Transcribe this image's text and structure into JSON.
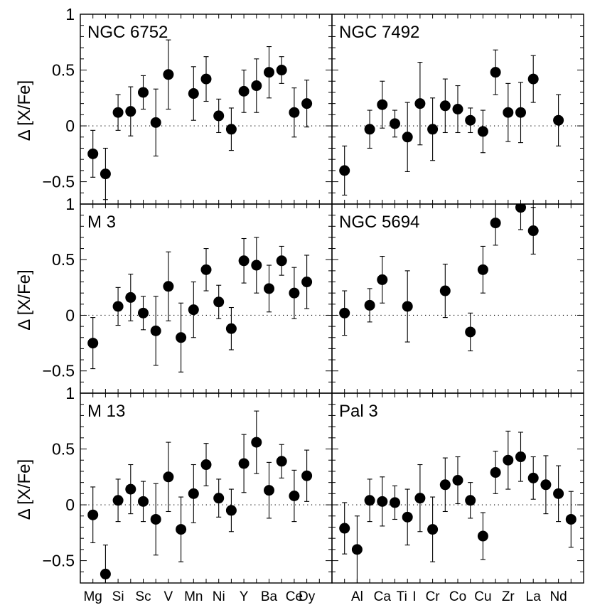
{
  "chart_data": [
    {
      "type": "scatter",
      "title": "NGC 6752",
      "ylabel": "Δ [X/Fe]",
      "ylim": [
        -0.7,
        1.0
      ],
      "yticks": [
        "1",
        "0.5",
        "0",
        "−0.5"
      ],
      "points": [
        {
          "x": 1,
          "y": -0.25,
          "err": 0.21
        },
        {
          "x": 2,
          "y": -0.43,
          "err": 0.23
        },
        {
          "x": 3,
          "y": 0.12,
          "err": 0.16
        },
        {
          "x": 4,
          "y": 0.13,
          "err": 0.22
        },
        {
          "x": 5,
          "y": 0.3,
          "err": 0.15
        },
        {
          "x": 6,
          "y": 0.03,
          "err": 0.3
        },
        {
          "x": 7,
          "y": 0.46,
          "err": 0.31
        },
        {
          "x": 9,
          "y": 0.29,
          "err": 0.24
        },
        {
          "x": 10,
          "y": 0.42,
          "err": 0.2
        },
        {
          "x": 11,
          "y": 0.09,
          "err": 0.15
        },
        {
          "x": 12,
          "y": -0.03,
          "err": 0.19
        },
        {
          "x": 13,
          "y": 0.31,
          "err": 0.19
        },
        {
          "x": 14,
          "y": 0.36,
          "err": 0.24
        },
        {
          "x": 15,
          "y": 0.48,
          "err": 0.23
        },
        {
          "x": 16,
          "y": 0.5,
          "err": 0.12
        },
        {
          "x": 17,
          "y": 0.12,
          "err": 0.22
        },
        {
          "x": 18,
          "y": 0.2,
          "err": 0.21
        }
      ]
    },
    {
      "type": "scatter",
      "title": "NGC 7492",
      "ylim": [
        -0.7,
        1.0
      ],
      "points": [
        {
          "x": 1,
          "y": -0.4,
          "err": 0.22
        },
        {
          "x": 3,
          "y": -0.03,
          "err": 0.17
        },
        {
          "x": 4,
          "y": 0.19,
          "err": 0.21
        },
        {
          "x": 5,
          "y": 0.02,
          "err": 0.12
        },
        {
          "x": 6,
          "y": -0.1,
          "err": 0.31
        },
        {
          "x": 7,
          "y": 0.2,
          "err": 0.37
        },
        {
          "x": 8,
          "y": -0.03,
          "err": 0.28
        },
        {
          "x": 9,
          "y": 0.18,
          "err": 0.24
        },
        {
          "x": 10,
          "y": 0.15,
          "err": 0.21
        },
        {
          "x": 11,
          "y": 0.05,
          "err": 0.11
        },
        {
          "x": 12,
          "y": -0.05,
          "err": 0.19
        },
        {
          "x": 13,
          "y": 0.48,
          "err": 0.2
        },
        {
          "x": 14,
          "y": 0.12,
          "err": 0.26
        },
        {
          "x": 15,
          "y": 0.12,
          "err": 0.27
        },
        {
          "x": 16,
          "y": 0.42,
          "err": 0.21
        },
        {
          "x": 18,
          "y": 0.05,
          "err": 0.23
        }
      ]
    },
    {
      "type": "scatter",
      "title": "M 3",
      "ylabel": "Δ [X/Fe]",
      "ylim": [
        -0.7,
        1.0
      ],
      "yticks": [
        "1",
        "0.5",
        "0",
        "−0.5"
      ],
      "points": [
        {
          "x": 1,
          "y": -0.25,
          "err": 0.23
        },
        {
          "x": 3,
          "y": 0.08,
          "err": 0.17
        },
        {
          "x": 4,
          "y": 0.16,
          "err": 0.21
        },
        {
          "x": 5,
          "y": 0.02,
          "err": 0.15
        },
        {
          "x": 6,
          "y": -0.14,
          "err": 0.31
        },
        {
          "x": 7,
          "y": 0.26,
          "err": 0.31
        },
        {
          "x": 8,
          "y": -0.2,
          "err": 0.31
        },
        {
          "x": 9,
          "y": 0.05,
          "err": 0.25
        },
        {
          "x": 10,
          "y": 0.41,
          "err": 0.19
        },
        {
          "x": 11,
          "y": 0.12,
          "err": 0.15
        },
        {
          "x": 12,
          "y": -0.12,
          "err": 0.19
        },
        {
          "x": 13,
          "y": 0.49,
          "err": 0.2
        },
        {
          "x": 14,
          "y": 0.45,
          "err": 0.25
        },
        {
          "x": 15,
          "y": 0.24,
          "err": 0.21
        },
        {
          "x": 16,
          "y": 0.49,
          "err": 0.13
        },
        {
          "x": 17,
          "y": 0.2,
          "err": 0.23
        },
        {
          "x": 18,
          "y": 0.3,
          "err": 0.24
        }
      ]
    },
    {
      "type": "scatter",
      "title": "NGC 5694",
      "ylim": [
        -0.7,
        1.0
      ],
      "points": [
        {
          "x": 1,
          "y": 0.02,
          "err": 0.2
        },
        {
          "x": 3,
          "y": 0.09,
          "err": 0.15
        },
        {
          "x": 4,
          "y": 0.32,
          "err": 0.21
        },
        {
          "x": 6,
          "y": 0.08,
          "err": 0.32
        },
        {
          "x": 9,
          "y": 0.22,
          "err": 0.24
        },
        {
          "x": 11,
          "y": -0.15,
          "err": 0.17
        },
        {
          "x": 12,
          "y": 0.41,
          "err": 0.21
        },
        {
          "x": 13,
          "y": 0.83,
          "err": 0.2
        },
        {
          "x": 15,
          "y": 0.97,
          "err": 0.2
        },
        {
          "x": 16,
          "y": 0.76,
          "err": 0.21
        }
      ]
    },
    {
      "type": "scatter",
      "title": "M 13",
      "ylabel": "Δ [X/Fe]",
      "ylim": [
        -0.7,
        1.0
      ],
      "yticks": [
        "1",
        "0.5",
        "0",
        "−0.5"
      ],
      "xticks": [
        "Mg",
        "Si",
        "Sc",
        "V",
        "Mn",
        "Ni",
        "Y",
        "Ba",
        "Ce",
        "Dy"
      ],
      "xtick_positions": [
        1,
        3,
        5,
        7,
        9,
        11,
        13,
        15,
        17,
        18
      ],
      "points": [
        {
          "x": 1,
          "y": -0.09,
          "err": 0.25
        },
        {
          "x": 2,
          "y": -0.62,
          "err": 0.26
        },
        {
          "x": 3,
          "y": 0.04,
          "err": 0.19
        },
        {
          "x": 4,
          "y": 0.14,
          "err": 0.22
        },
        {
          "x": 5,
          "y": 0.03,
          "err": 0.18
        },
        {
          "x": 6,
          "y": -0.13,
          "err": 0.32
        },
        {
          "x": 7,
          "y": 0.25,
          "err": 0.31
        },
        {
          "x": 8,
          "y": -0.22,
          "err": 0.29
        },
        {
          "x": 9,
          "y": 0.1,
          "err": 0.26
        },
        {
          "x": 10,
          "y": 0.36,
          "err": 0.19
        },
        {
          "x": 11,
          "y": 0.06,
          "err": 0.17
        },
        {
          "x": 12,
          "y": -0.05,
          "err": 0.19
        },
        {
          "x": 13,
          "y": 0.37,
          "err": 0.26
        },
        {
          "x": 14,
          "y": 0.56,
          "err": 0.28
        },
        {
          "x": 15,
          "y": 0.13,
          "err": 0.25
        },
        {
          "x": 16,
          "y": 0.39,
          "err": 0.15
        },
        {
          "x": 17,
          "y": 0.08,
          "err": 0.23
        },
        {
          "x": 18,
          "y": 0.26,
          "err": 0.23
        }
      ]
    },
    {
      "type": "scatter",
      "title": "Pal 3",
      "ylim": [
        -0.7,
        1.0
      ],
      "xticks": [
        "Al",
        "Ca",
        "Ti",
        "I",
        "Cr",
        "Co",
        "Cu",
        "Zr",
        "La",
        "Nd"
      ],
      "xtick_positions": [
        2,
        4,
        5.55,
        6.55,
        8,
        10,
        12,
        14,
        16,
        18
      ],
      "points": [
        {
          "x": 1,
          "y": -0.21,
          "err": 0.23
        },
        {
          "x": 2,
          "y": -0.4,
          "err": 0.3
        },
        {
          "x": 3,
          "y": 0.04,
          "err": 0.19
        },
        {
          "x": 4,
          "y": 0.03,
          "err": 0.22
        },
        {
          "x": 5,
          "y": 0.02,
          "err": 0.15
        },
        {
          "x": 6,
          "y": -0.11,
          "err": 0.25
        },
        {
          "x": 7,
          "y": 0.06,
          "err": 0.3
        },
        {
          "x": 8,
          "y": -0.22,
          "err": 0.29
        },
        {
          "x": 9,
          "y": 0.18,
          "err": 0.24
        },
        {
          "x": 10,
          "y": 0.22,
          "err": 0.21
        },
        {
          "x": 11,
          "y": 0.04,
          "err": 0.16
        },
        {
          "x": 12,
          "y": -0.28,
          "err": 0.21
        },
        {
          "x": 13,
          "y": 0.29,
          "err": 0.19
        },
        {
          "x": 14,
          "y": 0.4,
          "err": 0.26
        },
        {
          "x": 15,
          "y": 0.43,
          "err": 0.22
        },
        {
          "x": 16,
          "y": 0.24,
          "err": 0.19
        },
        {
          "x": 17,
          "y": 0.18,
          "err": 0.26
        },
        {
          "x": 18,
          "y": 0.1,
          "err": 0.25
        },
        {
          "x": 19,
          "y": -0.13,
          "err": 0.25
        }
      ]
    }
  ]
}
